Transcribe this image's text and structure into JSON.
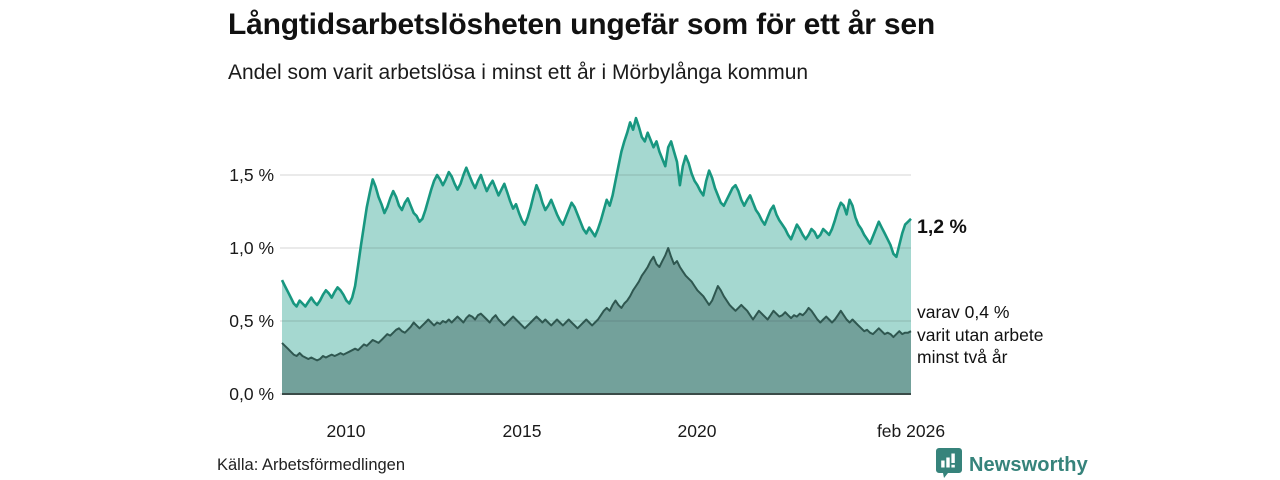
{
  "header": {
    "title": "Långtidsarbetslösheten ungefär som för ett år sen",
    "subtitle": "Andel som varit arbetslösa i minst ett år i Mörbylånga kommun"
  },
  "chart_data": {
    "type": "area",
    "unit": "%",
    "x_start": "2008-03",
    "x_end": "2026-02",
    "frequency": "monthly",
    "ylim": [
      0,
      1.95
    ],
    "grid": true,
    "y_ticks": [
      {
        "label": "0,0 %",
        "value": 0.0
      },
      {
        "label": "0,5 %",
        "value": 0.5
      },
      {
        "label": "1,0 %",
        "value": 1.0
      },
      {
        "label": "1,5 %",
        "value": 1.5
      }
    ],
    "x_ticks": [
      {
        "label": "2010",
        "month_index": 22
      },
      {
        "label": "2015",
        "month_index": 82
      },
      {
        "label": "2020",
        "month_index": 142
      },
      {
        "label": "feb 2026",
        "month_index": 215
      }
    ],
    "series": [
      {
        "name": "Andel arbetslösa minst ett år",
        "latest_label": "1,2 %",
        "line_color": "#189780",
        "fill_color": "#a5d8d0",
        "values": [
          0.78,
          0.74,
          0.7,
          0.66,
          0.62,
          0.6,
          0.64,
          0.62,
          0.6,
          0.63,
          0.66,
          0.63,
          0.61,
          0.64,
          0.68,
          0.71,
          0.69,
          0.66,
          0.7,
          0.73,
          0.71,
          0.68,
          0.64,
          0.62,
          0.66,
          0.74,
          0.88,
          1.02,
          1.15,
          1.28,
          1.38,
          1.47,
          1.42,
          1.35,
          1.3,
          1.24,
          1.28,
          1.34,
          1.39,
          1.35,
          1.29,
          1.26,
          1.31,
          1.34,
          1.29,
          1.24,
          1.22,
          1.18,
          1.2,
          1.26,
          1.33,
          1.4,
          1.46,
          1.5,
          1.47,
          1.43,
          1.47,
          1.52,
          1.49,
          1.44,
          1.4,
          1.44,
          1.5,
          1.55,
          1.5,
          1.45,
          1.41,
          1.46,
          1.5,
          1.44,
          1.39,
          1.43,
          1.46,
          1.41,
          1.36,
          1.4,
          1.44,
          1.38,
          1.32,
          1.27,
          1.3,
          1.24,
          1.19,
          1.16,
          1.21,
          1.28,
          1.36,
          1.43,
          1.38,
          1.31,
          1.26,
          1.29,
          1.33,
          1.28,
          1.23,
          1.19,
          1.16,
          1.21,
          1.26,
          1.31,
          1.28,
          1.23,
          1.18,
          1.13,
          1.1,
          1.14,
          1.11,
          1.08,
          1.13,
          1.19,
          1.26,
          1.33,
          1.29,
          1.36,
          1.46,
          1.56,
          1.66,
          1.73,
          1.79,
          1.86,
          1.81,
          1.89,
          1.83,
          1.76,
          1.73,
          1.79,
          1.74,
          1.69,
          1.73,
          1.66,
          1.61,
          1.56,
          1.69,
          1.73,
          1.66,
          1.59,
          1.43,
          1.56,
          1.63,
          1.58,
          1.51,
          1.46,
          1.43,
          1.39,
          1.36,
          1.46,
          1.53,
          1.48,
          1.41,
          1.36,
          1.31,
          1.29,
          1.33,
          1.37,
          1.41,
          1.43,
          1.39,
          1.33,
          1.29,
          1.33,
          1.36,
          1.31,
          1.26,
          1.23,
          1.19,
          1.16,
          1.21,
          1.26,
          1.29,
          1.23,
          1.19,
          1.16,
          1.13,
          1.09,
          1.06,
          1.11,
          1.16,
          1.13,
          1.09,
          1.06,
          1.09,
          1.13,
          1.11,
          1.07,
          1.09,
          1.13,
          1.11,
          1.09,
          1.13,
          1.19,
          1.26,
          1.31,
          1.29,
          1.23,
          1.33,
          1.29,
          1.21,
          1.16,
          1.13,
          1.09,
          1.06,
          1.03,
          1.08,
          1.13,
          1.18,
          1.14,
          1.1,
          1.06,
          1.02,
          0.96,
          0.94,
          1.02,
          1.1,
          1.16,
          1.18,
          1.2
        ]
      },
      {
        "name": "Andel arbetslösa minst två år",
        "latest_label": "varav 0,4 %",
        "line_color": "#2f5750",
        "fill_color": "#73a19b",
        "values": [
          0.35,
          0.33,
          0.31,
          0.29,
          0.27,
          0.26,
          0.28,
          0.26,
          0.25,
          0.24,
          0.25,
          0.24,
          0.23,
          0.24,
          0.26,
          0.25,
          0.26,
          0.27,
          0.26,
          0.27,
          0.28,
          0.27,
          0.28,
          0.29,
          0.3,
          0.31,
          0.3,
          0.32,
          0.34,
          0.33,
          0.35,
          0.37,
          0.36,
          0.35,
          0.37,
          0.39,
          0.41,
          0.4,
          0.42,
          0.44,
          0.45,
          0.43,
          0.42,
          0.44,
          0.46,
          0.49,
          0.47,
          0.45,
          0.47,
          0.49,
          0.51,
          0.49,
          0.47,
          0.49,
          0.48,
          0.5,
          0.49,
          0.51,
          0.49,
          0.51,
          0.53,
          0.51,
          0.49,
          0.52,
          0.54,
          0.53,
          0.51,
          0.54,
          0.55,
          0.53,
          0.51,
          0.49,
          0.52,
          0.54,
          0.51,
          0.49,
          0.47,
          0.49,
          0.51,
          0.53,
          0.51,
          0.49,
          0.47,
          0.45,
          0.47,
          0.49,
          0.51,
          0.53,
          0.51,
          0.49,
          0.51,
          0.49,
          0.47,
          0.49,
          0.51,
          0.49,
          0.47,
          0.49,
          0.51,
          0.49,
          0.47,
          0.45,
          0.47,
          0.49,
          0.51,
          0.49,
          0.47,
          0.49,
          0.51,
          0.54,
          0.57,
          0.59,
          0.57,
          0.61,
          0.64,
          0.61,
          0.59,
          0.62,
          0.64,
          0.67,
          0.71,
          0.74,
          0.77,
          0.81,
          0.84,
          0.87,
          0.91,
          0.94,
          0.89,
          0.87,
          0.91,
          0.95,
          1.0,
          0.94,
          0.89,
          0.91,
          0.87,
          0.84,
          0.81,
          0.79,
          0.77,
          0.74,
          0.71,
          0.69,
          0.67,
          0.64,
          0.61,
          0.64,
          0.69,
          0.74,
          0.71,
          0.67,
          0.64,
          0.61,
          0.59,
          0.57,
          0.59,
          0.61,
          0.59,
          0.57,
          0.54,
          0.51,
          0.54,
          0.57,
          0.55,
          0.53,
          0.51,
          0.54,
          0.57,
          0.55,
          0.53,
          0.54,
          0.56,
          0.54,
          0.52,
          0.54,
          0.53,
          0.55,
          0.54,
          0.56,
          0.59,
          0.57,
          0.54,
          0.51,
          0.49,
          0.51,
          0.53,
          0.51,
          0.49,
          0.51,
          0.54,
          0.57,
          0.54,
          0.51,
          0.49,
          0.51,
          0.49,
          0.47,
          0.45,
          0.43,
          0.44,
          0.42,
          0.41,
          0.43,
          0.45,
          0.43,
          0.41,
          0.42,
          0.41,
          0.39,
          0.41,
          0.43,
          0.41,
          0.42,
          0.42,
          0.43
        ]
      }
    ]
  },
  "annotations": {
    "latest_total": "1,2 %",
    "two_year_lines": [
      "varav 0,4 %",
      "varit utan arbete",
      "minst två år"
    ]
  },
  "footer": {
    "source": "Källa: Arbetsförmedlingen",
    "brand": "Newsworthy"
  },
  "colors": {
    "title_text": "#111111",
    "grid": "#d9d9d9",
    "baseline": "#3a4b48",
    "series1_line": "#189780",
    "series1_fill": "#a5d8d0",
    "series2_line": "#2f5750",
    "series2_fill": "#73a19b",
    "brand_teal": "#36837b"
  },
  "icons": {
    "brand_logo": "newsworthy-speech-bubble-bar-chart-icon"
  }
}
